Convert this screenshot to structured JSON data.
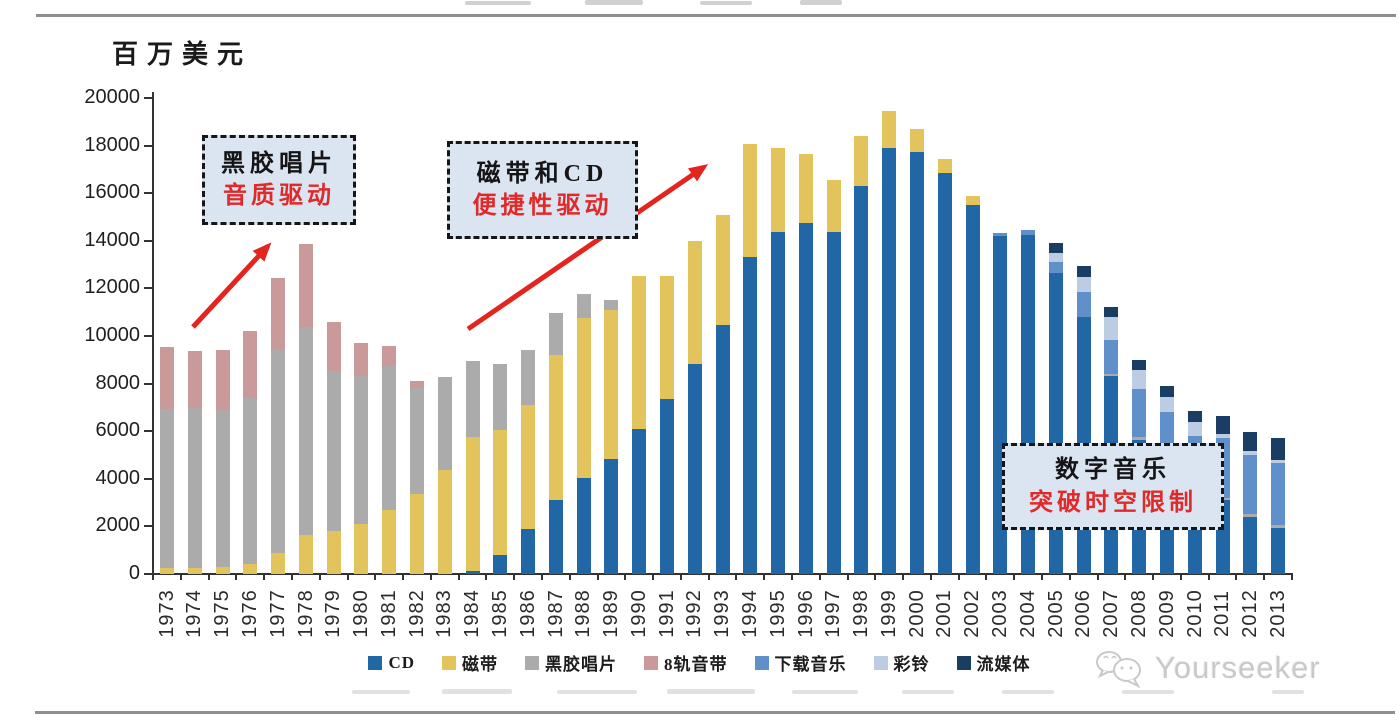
{
  "meta": {
    "unit_label": "百万美元",
    "watermark": "Yourseeker"
  },
  "annotations": [
    {
      "line1": "黑胶唱片",
      "line2": "音质驱动"
    },
    {
      "line1": "磁带和CD",
      "line2": "便捷性驱动"
    },
    {
      "line1": "数字音乐",
      "line2": "突破时空限制"
    }
  ],
  "chart_data": {
    "type": "bar",
    "stacked": true,
    "title": "",
    "xlabel": "",
    "ylabel": "百万美元",
    "ylim": [
      0,
      20000
    ],
    "ytick_step": 2000,
    "grid": false,
    "legend_position": "bottom",
    "categories": [
      "1973",
      "1974",
      "1975",
      "1976",
      "1977",
      "1978",
      "1979",
      "1980",
      "1981",
      "1982",
      "1983",
      "1984",
      "1985",
      "1986",
      "1987",
      "1988",
      "1989",
      "1990",
      "1991",
      "1992",
      "1993",
      "1994",
      "1995",
      "1996",
      "1997",
      "1998",
      "1999",
      "2000",
      "2001",
      "2002",
      "2003",
      "2004",
      "2005",
      "2006",
      "2007",
      "2008",
      "2009",
      "2010",
      "2011",
      "2012",
      "2013"
    ],
    "series": [
      {
        "key": "cd",
        "name": "CD",
        "color": "#2166a5",
        "values": [
          0,
          0,
          0,
          0,
          0,
          0,
          0,
          0,
          0,
          0,
          0,
          130,
          790,
          1880,
          3100,
          4050,
          4850,
          6100,
          7350,
          8840,
          10480,
          13300,
          14350,
          14750,
          14350,
          16300,
          17900,
          17750,
          16850,
          15500,
          14200,
          14250,
          12650,
          10800,
          8300,
          5650,
          4200,
          3400,
          3100,
          2400,
          1950
        ]
      },
      {
        "key": "cassette",
        "name": "磁带",
        "color": "#e2c35c",
        "values": [
          270,
          270,
          310,
          410,
          900,
          1640,
          1810,
          2120,
          2680,
          3360,
          4370,
          5610,
          5260,
          5220,
          6100,
          6700,
          6250,
          6400,
          5150,
          5160,
          4620,
          4750,
          3550,
          2900,
          2200,
          2100,
          1550,
          950,
          600,
          400,
          0,
          0,
          0,
          0,
          0,
          0,
          0,
          0,
          0,
          0,
          0
        ]
      },
      {
        "key": "vinyl",
        "name": "黑胶唱片",
        "color": "#ababab",
        "values": [
          6660,
          6710,
          6580,
          6990,
          8560,
          8730,
          6740,
          6180,
          6040,
          4460,
          3900,
          3230,
          2780,
          2320,
          1750,
          1000,
          400,
          0,
          0,
          0,
          0,
          0,
          0,
          0,
          0,
          0,
          0,
          0,
          0,
          0,
          0,
          0,
          0,
          0,
          90,
          90,
          100,
          100,
          100,
          100,
          100
        ]
      },
      {
        "key": "eight-track",
        "name": "8轨音带",
        "color": "#ca9a9b",
        "values": [
          2620,
          2410,
          2530,
          2790,
          2990,
          3480,
          2050,
          1400,
          840,
          310,
          0,
          0,
          0,
          0,
          0,
          0,
          0,
          0,
          0,
          0,
          0,
          0,
          0,
          0,
          0,
          0,
          0,
          0,
          0,
          0,
          0,
          0,
          0,
          0,
          0,
          0,
          0,
          0,
          0,
          0,
          0
        ]
      },
      {
        "key": "download",
        "name": "下载音乐",
        "color": "#6090ca",
        "values": [
          0,
          0,
          0,
          0,
          0,
          0,
          0,
          0,
          0,
          0,
          0,
          0,
          0,
          0,
          0,
          0,
          0,
          0,
          0,
          0,
          0,
          0,
          0,
          0,
          0,
          0,
          0,
          0,
          0,
          0,
          130,
          200,
          450,
          1050,
          1460,
          2040,
          2490,
          2310,
          2500,
          2500,
          2600
        ]
      },
      {
        "key": "ringtone",
        "name": "彩铃",
        "color": "#bccde3",
        "values": [
          0,
          0,
          0,
          0,
          0,
          0,
          0,
          0,
          0,
          0,
          0,
          0,
          0,
          0,
          0,
          0,
          0,
          0,
          0,
          0,
          0,
          0,
          0,
          0,
          0,
          0,
          0,
          0,
          0,
          0,
          0,
          0,
          400,
          630,
          950,
          800,
          630,
          560,
          200,
          150,
          150
        ]
      },
      {
        "key": "streaming",
        "name": "流媒体",
        "color": "#1a3d63",
        "values": [
          0,
          0,
          0,
          0,
          0,
          0,
          0,
          0,
          0,
          0,
          0,
          0,
          0,
          0,
          0,
          0,
          0,
          0,
          0,
          0,
          0,
          0,
          0,
          0,
          0,
          0,
          0,
          0,
          0,
          0,
          0,
          0,
          400,
          450,
          420,
          420,
          490,
          460,
          750,
          830,
          900
        ]
      }
    ]
  }
}
